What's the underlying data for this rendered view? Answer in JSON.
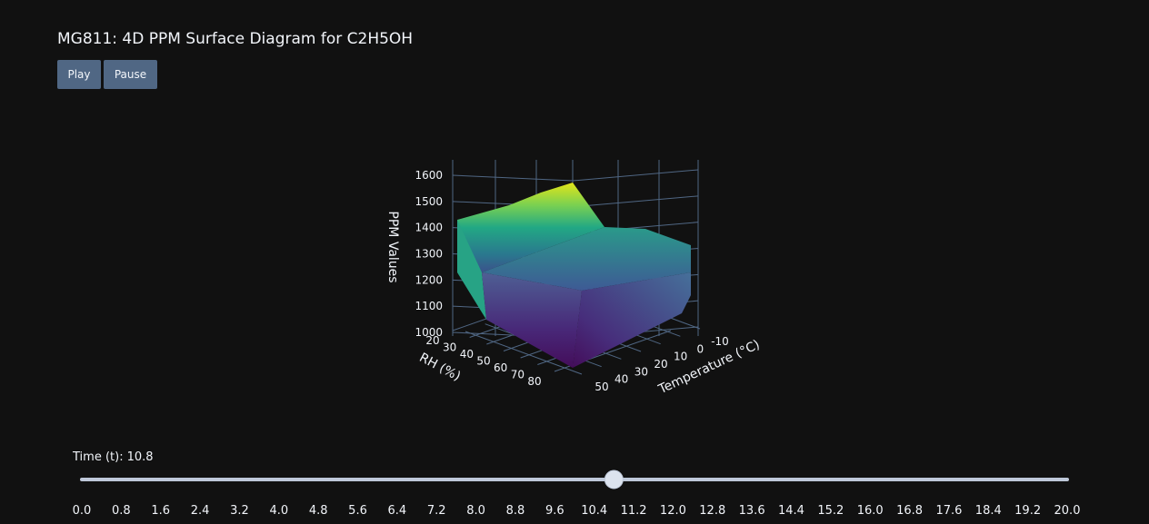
{
  "header": {
    "title": "MG811: 4D PPM Surface Diagram for C2H5OH"
  },
  "buttons": [
    "Play",
    "Pause"
  ],
  "scene": {
    "z_title": "PPM Values",
    "x_title": "Temperature (°C)",
    "y_title": "RH (%)",
    "zticks": [
      1000,
      1100,
      1200,
      1300,
      1400,
      1500,
      1600
    ],
    "xticks": [
      -10,
      0,
      10,
      20,
      30,
      40,
      50
    ],
    "yticks": [
      20,
      30,
      40,
      50,
      60,
      70,
      80
    ]
  },
  "slider": {
    "label": "Time (t):",
    "current": 10.8,
    "range": [
      0,
      20
    ],
    "ticks": [
      {
        "value": 0,
        "label": "0.0"
      },
      {
        "value": 0.8,
        "label": "0.8"
      },
      {
        "value": 1.6,
        "label": "1.6"
      },
      {
        "value": 2.4,
        "label": "2.4"
      },
      {
        "value": 3.2,
        "label": "3.2"
      },
      {
        "value": 4,
        "label": "4.0"
      },
      {
        "value": 4.8,
        "label": "4.8"
      },
      {
        "value": 5.6,
        "label": "5.6"
      },
      {
        "value": 6.4,
        "label": "6.4"
      },
      {
        "value": 7.2,
        "label": "7.2"
      },
      {
        "value": 8,
        "label": "8.0"
      },
      {
        "value": 8.8,
        "label": "8.8"
      },
      {
        "value": 9.6,
        "label": "9.6"
      },
      {
        "value": 10.4,
        "label": "10.4"
      },
      {
        "value": 11.2,
        "label": "11.2"
      },
      {
        "value": 12,
        "label": "12.0"
      },
      {
        "value": 12.8,
        "label": "12.8"
      },
      {
        "value": 13.6,
        "label": "13.6"
      },
      {
        "value": 14.4,
        "label": "14.4"
      },
      {
        "value": 15.2,
        "label": "15.2"
      },
      {
        "value": 16,
        "label": "16.0"
      },
      {
        "value": 16.8,
        "label": "16.8"
      },
      {
        "value": 17.6,
        "label": "17.6"
      },
      {
        "value": 18.4,
        "label": "18.4"
      },
      {
        "value": 19.2,
        "label": "19.2"
      },
      {
        "value": 20,
        "label": "20.0"
      }
    ]
  }
}
